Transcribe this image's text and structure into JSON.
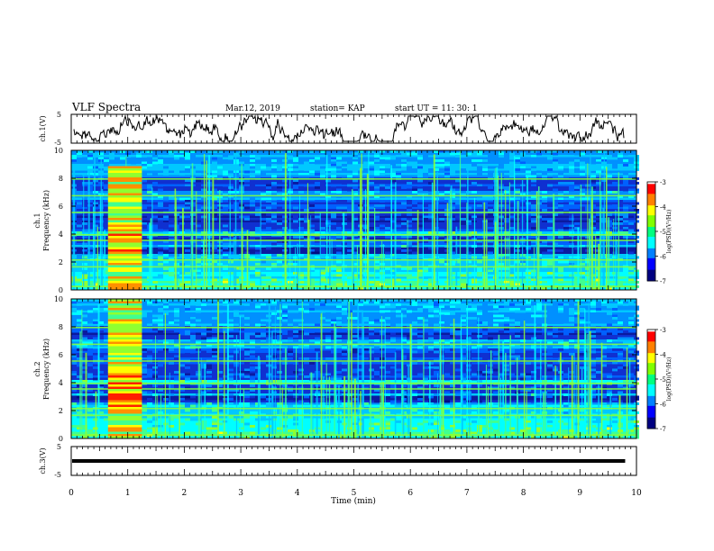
{
  "header": {
    "title": "VLF Spectra",
    "date": "Mar.12, 2019",
    "station": "station= KAP",
    "start": "start  UT =   11: 30: 1"
  },
  "colorbar": {
    "label": "log(PSD)(V²/Hz)",
    "ticks": [
      "-3",
      "-4",
      "-5",
      "-6",
      "-7"
    ],
    "colors": [
      "#000080",
      "#0000ff",
      "#0080ff",
      "#00ffff",
      "#00ff80",
      "#80ff00",
      "#ffff00",
      "#ff8000",
      "#ff0000",
      "#ffffff"
    ]
  },
  "chart_data": [
    {
      "type": "line",
      "name": "panel-ch1-waveform",
      "ylabel": "ch.1(V)",
      "ylim": [
        -5,
        5
      ],
      "yticks": [
        "5",
        "-5"
      ],
      "xlim": [
        0,
        10
      ],
      "description_values": "noisy waveform near 0 V"
    },
    {
      "type": "heatmap",
      "name": "panel-ch1-spectrogram",
      "ylabel": "ch.1 Frequency (kHz)",
      "ylabel_lines": [
        "ch.1",
        "Frequency  (kHz)"
      ],
      "ylim": [
        0,
        10
      ],
      "yticks": [
        "0",
        "2",
        "4",
        "6",
        "8",
        "10"
      ],
      "xlim": [
        0,
        10
      ],
      "burst_interval_min": [
        0.65,
        1.25
      ],
      "colorbar_range": [
        -7,
        -3
      ]
    },
    {
      "type": "heatmap",
      "name": "panel-ch2-spectrogram",
      "ylabel": "ch.2 Frequency (kHz)",
      "ylabel_lines": [
        "ch.2",
        "Frequency  (kHz)"
      ],
      "ylim": [
        0,
        10
      ],
      "yticks": [
        "0",
        "2",
        "4",
        "6",
        "8",
        "10"
      ],
      "xlim": [
        0,
        10
      ],
      "burst_interval_min": [
        0.65,
        1.25
      ],
      "colorbar_range": [
        -7,
        -3
      ]
    },
    {
      "type": "line",
      "name": "panel-ch3-signal",
      "ylabel": "ch.3(V)",
      "ylim": [
        -5,
        5
      ],
      "yticks": [
        "5",
        "-5"
      ],
      "x": [
        0,
        9.8
      ],
      "y": [
        0,
        0
      ],
      "xlim": [
        0,
        10
      ]
    }
  ],
  "xaxis": {
    "label": "Time  (min)",
    "ticks": [
      "0",
      "1",
      "2",
      "3",
      "4",
      "5",
      "6",
      "7",
      "8",
      "9",
      "10"
    ]
  }
}
